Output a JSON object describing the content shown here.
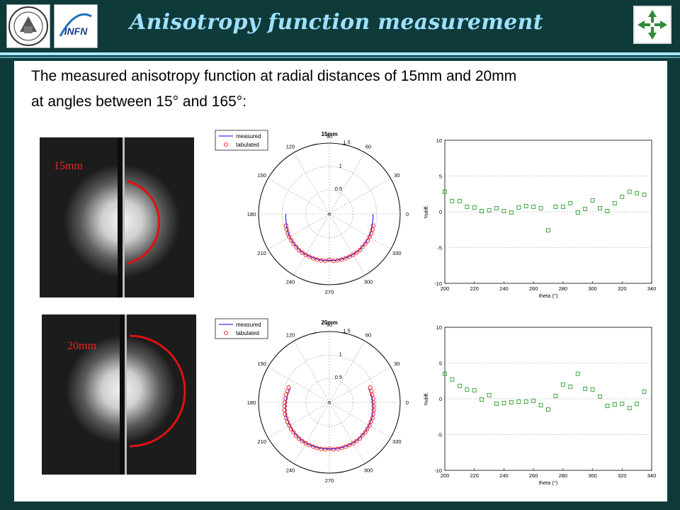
{
  "header": {
    "title": "Anisotropy function measurement",
    "left_logo": "university-seal",
    "infn_logo": "infn-logo",
    "right_logo": "compass-arrows-logo",
    "infn_text": "INFN"
  },
  "body": {
    "line1": "The measured anisotropy function at radial distances of 15mm and 20mm",
    "line2": "at angles between 15° and 165°:"
  },
  "images": [
    {
      "label": "15mm"
    },
    {
      "label": "20mm"
    }
  ],
  "legend": {
    "measured": "measured",
    "tabulated": "tabulated"
  },
  "colors": {
    "measured": "#0000ff",
    "tabulated": "#ff0000",
    "diff": "#2ca02c",
    "arc": "#e01010"
  },
  "chart_data": [
    {
      "type": "polar",
      "title": "15mm",
      "radial_ticks": [
        "0.5",
        "1",
        "1.5"
      ],
      "angle_labels": [
        "0",
        "30",
        "60",
        "90",
        "120",
        "150",
        "180",
        "210",
        "240",
        "270",
        "300",
        "330"
      ],
      "series": [
        {
          "name": "measured",
          "angles": [
            180,
            185,
            190,
            195,
            200,
            205,
            210,
            215,
            220,
            225,
            230,
            235,
            240,
            245,
            250,
            255,
            260,
            265,
            270,
            275,
            280,
            285,
            290,
            295,
            300,
            305,
            310,
            315,
            320,
            325,
            330,
            335,
            340,
            345,
            350,
            355,
            360
          ],
          "r": [
            0.92,
            0.93,
            0.93,
            0.94,
            0.95,
            0.96,
            0.97,
            0.97,
            0.98,
            0.98,
            0.99,
            0.99,
            0.99,
            0.99,
            0.99,
            0.99,
            0.99,
            0.99,
            0.98,
            0.99,
            0.99,
            0.99,
            0.99,
            0.99,
            0.99,
            0.99,
            0.99,
            0.98,
            0.98,
            0.97,
            0.97,
            0.96,
            0.95,
            0.94,
            0.93,
            0.93,
            0.92
          ]
        },
        {
          "name": "tabulated",
          "angles": [
            195,
            200,
            205,
            210,
            215,
            220,
            225,
            230,
            235,
            240,
            245,
            250,
            255,
            260,
            265,
            270,
            275,
            280,
            285,
            290,
            295,
            300,
            305,
            310,
            315,
            320,
            325,
            330,
            335,
            340,
            345
          ],
          "r": [
            0.95,
            0.96,
            0.97,
            0.98,
            0.98,
            0.99,
            0.99,
            1.0,
            1.0,
            1.0,
            1.0,
            1.0,
            1.0,
            1.0,
            1.0,
            0.97,
            1.0,
            1.0,
            1.0,
            1.0,
            1.0,
            1.0,
            1.0,
            1.0,
            0.99,
            0.99,
            0.99,
            0.98,
            0.98,
            0.97,
            0.96
          ]
        }
      ]
    },
    {
      "type": "scatter",
      "xlabel": "theta (°)",
      "ylabel": "%diff.",
      "xlim": [
        200,
        340
      ],
      "ylim": [
        -10,
        10
      ],
      "x_ticks": [
        200,
        220,
        240,
        260,
        280,
        300,
        320,
        340
      ],
      "y_ticks": [
        10,
        5,
        0,
        -5,
        -10
      ],
      "series": [
        {
          "name": "diff",
          "x": [
            200,
            205,
            210,
            215,
            220,
            225,
            230,
            235,
            240,
            245,
            250,
            255,
            260,
            265,
            270,
            275,
            280,
            285,
            290,
            295,
            300,
            305,
            310,
            315,
            320,
            325,
            330,
            335
          ],
          "y": [
            2.8,
            1.5,
            1.5,
            0.7,
            0.6,
            0.1,
            0.2,
            0.5,
            0.1,
            -0.1,
            0.6,
            0.8,
            0.7,
            0.5,
            -2.6,
            0.7,
            0.7,
            1.2,
            -0.1,
            0.4,
            1.6,
            0.5,
            0.1,
            1.2,
            2.1,
            2.8,
            2.6,
            2.4
          ]
        }
      ]
    },
    {
      "type": "polar",
      "title": "20mm",
      "radial_ticks": [
        "0.5",
        "1",
        "1.5"
      ],
      "angle_labels": [
        "0",
        "30",
        "60",
        "90",
        "120",
        "150",
        "180",
        "210",
        "240",
        "270",
        "300",
        "330"
      ],
      "series": [
        {
          "name": "measured",
          "angles": [
            160,
            165,
            170,
            175,
            180,
            185,
            190,
            195,
            200,
            205,
            210,
            215,
            220,
            225,
            230,
            235,
            240,
            245,
            250,
            255,
            260,
            265,
            270,
            275,
            280,
            285,
            290,
            295,
            300,
            305,
            310,
            315,
            320,
            325,
            330,
            335,
            340,
            345,
            350,
            355,
            360,
            365,
            370,
            375,
            380
          ],
          "r": [
            0.88,
            0.89,
            0.9,
            0.91,
            0.92,
            0.93,
            0.94,
            0.95,
            0.96,
            0.96,
            0.97,
            0.97,
            0.98,
            0.98,
            0.99,
            0.99,
            0.99,
            0.99,
            0.99,
            0.99,
            0.99,
            0.99,
            0.98,
            0.99,
            0.99,
            0.99,
            0.99,
            0.99,
            0.99,
            0.99,
            0.99,
            0.98,
            0.98,
            0.97,
            0.97,
            0.96,
            0.96,
            0.95,
            0.94,
            0.93,
            0.92,
            0.91,
            0.9,
            0.89,
            0.88
          ]
        },
        {
          "name": "tabulated",
          "angles": [
            160,
            165,
            170,
            175,
            180,
            185,
            190,
            195,
            200,
            205,
            210,
            215,
            220,
            225,
            230,
            235,
            240,
            245,
            250,
            255,
            260,
            265,
            270,
            275,
            280,
            285,
            290,
            295,
            300,
            305,
            310,
            315,
            320,
            325,
            330,
            335,
            340,
            345,
            350,
            355,
            360,
            365,
            370,
            375,
            380
          ],
          "r": [
            0.92,
            0.92,
            0.93,
            0.93,
            0.94,
            0.95,
            0.96,
            0.97,
            0.97,
            0.98,
            0.98,
            0.99,
            0.99,
            1.0,
            1.0,
            1.0,
            1.0,
            1.0,
            1.0,
            1.0,
            1.0,
            1.0,
            0.98,
            1.0,
            1.0,
            1.0,
            1.0,
            1.0,
            1.0,
            1.0,
            1.0,
            0.99,
            0.99,
            0.98,
            0.98,
            0.97,
            0.97,
            0.96,
            0.95,
            0.94,
            0.93,
            0.93,
            0.92,
            0.92,
            0.92
          ]
        }
      ]
    },
    {
      "type": "scatter",
      "xlabel": "theta (°)",
      "ylabel": "%diff.",
      "xlim": [
        200,
        340
      ],
      "ylim": [
        -10,
        10
      ],
      "x_ticks": [
        200,
        220,
        240,
        260,
        280,
        300,
        320,
        340
      ],
      "y_ticks": [
        10,
        5,
        0,
        -5,
        -10
      ],
      "series": [
        {
          "name": "diff",
          "x": [
            200,
            205,
            210,
            215,
            220,
            225,
            230,
            235,
            240,
            245,
            250,
            255,
            260,
            265,
            270,
            275,
            280,
            285,
            290,
            295,
            300,
            305,
            310,
            315,
            320,
            325,
            330,
            335
          ],
          "y": [
            3.5,
            2.7,
            1.8,
            1.3,
            1.2,
            -0.1,
            0.5,
            -0.7,
            -0.6,
            -0.5,
            -0.4,
            -0.4,
            -0.3,
            -0.9,
            -1.5,
            0.4,
            2.0,
            1.7,
            3.5,
            1.4,
            1.3,
            0.3,
            -1.0,
            -0.8,
            -0.7,
            -1.3,
            -0.7,
            1.0
          ]
        }
      ]
    }
  ]
}
